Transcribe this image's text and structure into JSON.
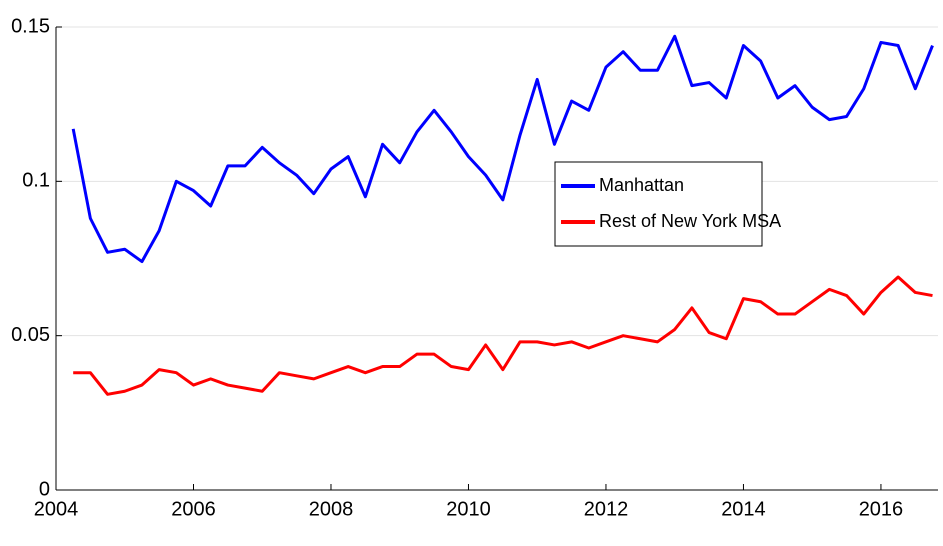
{
  "chart_data": {
    "type": "line",
    "x": [
      2004.25,
      2004.5,
      2004.75,
      2005,
      2005.25,
      2005.5,
      2005.75,
      2006,
      2006.25,
      2006.5,
      2006.75,
      2007,
      2007.25,
      2007.5,
      2007.75,
      2008,
      2008.25,
      2008.5,
      2008.75,
      2009,
      2009.25,
      2009.5,
      2009.75,
      2010,
      2010.25,
      2010.5,
      2010.75,
      2011,
      2011.25,
      2011.5,
      2011.75,
      2012,
      2012.25,
      2012.5,
      2012.75,
      2013,
      2013.25,
      2013.5,
      2013.75,
      2014,
      2014.25,
      2014.5,
      2014.75,
      2015,
      2015.25,
      2015.5,
      2015.75,
      2016,
      2016.25,
      2016.5,
      2016.75
    ],
    "series": [
      {
        "name": "Manhattan",
        "color": "#0000ff",
        "values": [
          0.117,
          0.088,
          0.077,
          0.078,
          0.074,
          0.084,
          0.1,
          0.097,
          0.092,
          0.105,
          0.105,
          0.111,
          0.106,
          0.102,
          0.096,
          0.104,
          0.108,
          0.095,
          0.112,
          0.106,
          0.116,
          0.123,
          0.116,
          0.108,
          0.102,
          0.094,
          0.115,
          0.133,
          0.112,
          0.126,
          0.123,
          0.137,
          0.142,
          0.136,
          0.136,
          0.147,
          0.131,
          0.132,
          0.127,
          0.144,
          0.139,
          0.127,
          0.131,
          0.124,
          0.12,
          0.121,
          0.13,
          0.145,
          0.144,
          0.13,
          0.144
        ]
      },
      {
        "name": "Rest of New York MSA",
        "color": "#ff0000",
        "values": [
          0.038,
          0.038,
          0.031,
          0.032,
          0.034,
          0.039,
          0.038,
          0.034,
          0.036,
          0.034,
          0.033,
          0.032,
          0.038,
          0.037,
          0.036,
          0.038,
          0.04,
          0.038,
          0.04,
          0.04,
          0.044,
          0.044,
          0.04,
          0.039,
          0.047,
          0.039,
          0.048,
          0.048,
          0.047,
          0.048,
          0.046,
          0.048,
          0.05,
          0.049,
          0.048,
          0.052,
          0.059,
          0.051,
          0.049,
          0.062,
          0.061,
          0.057,
          0.057,
          0.061,
          0.065,
          0.063,
          0.057,
          0.064,
          0.069,
          0.064,
          0.063
        ]
      }
    ],
    "xlim": [
      2004,
      2016.83
    ],
    "xticks": [
      2004,
      2006,
      2008,
      2010,
      2012,
      2014,
      2016
    ],
    "ylim": [
      0,
      0.15
    ],
    "yticks": [
      0,
      0.05,
      0.1,
      0.15
    ],
    "grid": true,
    "legend": "center"
  }
}
